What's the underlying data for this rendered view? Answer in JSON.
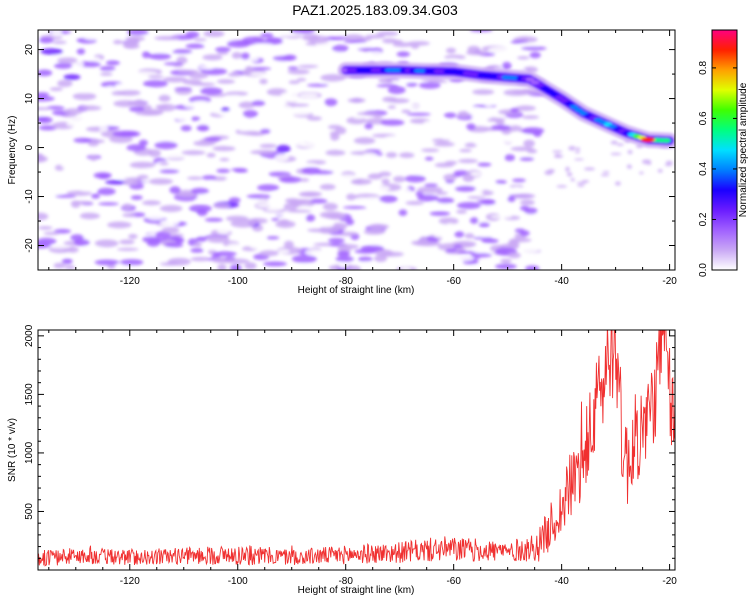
{
  "title": "PAZ1.2025.183.09.34.G03",
  "colors": {
    "snr_line": "#f03030",
    "colormap": [
      "#ffffff",
      "#c9a8f5",
      "#a060ff",
      "#6a1cff",
      "#1a00ff",
      "#0080ff",
      "#00e0ff",
      "#00ff80",
      "#40ff00",
      "#e0ff00",
      "#ffa000",
      "#ff2000",
      "#ff0080"
    ]
  },
  "chart_data": [
    {
      "type": "heatmap",
      "xlabel": "Height of straight line (km)",
      "ylabel": "Frequency (Hz)",
      "xlim": [
        -137,
        -19
      ],
      "ylim": [
        -25,
        24
      ],
      "xticks": [
        -120,
        -100,
        -80,
        -60,
        -40,
        -20
      ],
      "yticks": [
        -20,
        -10,
        0,
        10,
        20
      ],
      "grid": false,
      "colorbar": {
        "label": "Normalized spectral amplitude",
        "range": [
          0,
          0.95
        ],
        "ticks": [
          0.0,
          0.2,
          0.4,
          0.6,
          0.8
        ]
      },
      "main_signal_track": [
        [
          -80,
          15.8
        ],
        [
          -75,
          15.8
        ],
        [
          -70,
          15.8
        ],
        [
          -65,
          15.6
        ],
        [
          -60,
          15.5
        ],
        [
          -55,
          14.8
        ],
        [
          -50,
          14.3
        ],
        [
          -46,
          14.0
        ],
        [
          -43,
          12.0
        ],
        [
          -40,
          10.0
        ],
        [
          -36,
          7.0
        ],
        [
          -32,
          5.0
        ],
        [
          -28,
          3.0
        ],
        [
          -24,
          1.6
        ],
        [
          -20,
          1.4
        ]
      ],
      "track_peak_amplitude": [
        [
          -80,
          0.25
        ],
        [
          -75,
          0.35
        ],
        [
          -70,
          0.45
        ],
        [
          -65,
          0.35
        ],
        [
          -60,
          0.35
        ],
        [
          -55,
          0.3
        ],
        [
          -50,
          0.45
        ],
        [
          -45,
          0.25
        ],
        [
          -40,
          0.35
        ],
        [
          -36,
          0.4
        ],
        [
          -32,
          0.45
        ],
        [
          -28,
          0.4
        ],
        [
          -24,
          0.9
        ],
        [
          -20,
          0.5
        ]
      ],
      "background_noise_extent_km": [
        -137,
        -44
      ],
      "background_noise_max_amplitude": 0.2
    },
    {
      "type": "line",
      "xlabel": "Height of straight line (km)",
      "ylabel": "SNR (10 * v/v)",
      "xlim": [
        -137,
        -19
      ],
      "ylim": [
        0,
        2050
      ],
      "xticks": [
        -120,
        -100,
        -80,
        -60,
        -40,
        -20
      ],
      "yticks": [
        500,
        1000,
        1500,
        2000
      ],
      "grid": false,
      "series": [
        {
          "x": [
            -137,
            -130,
            -120,
            -110,
            -100,
            -90,
            -80,
            -70,
            -62,
            -56,
            -50,
            -46,
            -44,
            -42,
            -40,
            -38,
            -36,
            -34,
            -32,
            -31,
            -30,
            -29,
            -28,
            -26,
            -24,
            -22,
            -21,
            -20,
            -19
          ],
          "y": [
            100,
            120,
            110,
            120,
            130,
            110,
            130,
            150,
            180,
            170,
            160,
            180,
            220,
            380,
            520,
            760,
            900,
            1300,
            1700,
            1800,
            2050,
            1200,
            900,
            1150,
            1250,
            1700,
            2000,
            1500,
            1250
          ],
          "noise_amplitude": [
            70,
            70,
            70,
            70,
            90,
            70,
            80,
            90,
            110,
            100,
            90,
            110,
            150,
            200,
            250,
            300,
            350,
            400,
            450,
            450,
            450,
            450,
            400,
            400,
            400,
            450,
            450,
            400,
            350
          ]
        }
      ]
    }
  ]
}
